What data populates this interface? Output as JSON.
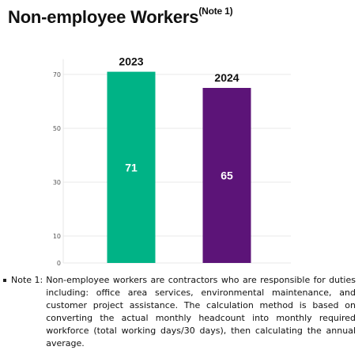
{
  "title": "Non-employee Workers",
  "title_note": "(Note 1)",
  "chart_data": {
    "type": "bar",
    "categories": [
      "2023",
      "2024"
    ],
    "values": [
      71,
      65
    ],
    "colors": [
      "#00b386",
      "#5c1478"
    ],
    "y_ticks": [
      0,
      10,
      30,
      50,
      70
    ],
    "ylim": [
      0,
      78
    ],
    "grid": true,
    "legend": "none"
  },
  "note": {
    "label": "Note 1:",
    "text": "Non-employee workers are contractors who are responsible for duties including: office area services, environmental maintenance, and customer project assistance. The calculation method is based on converting the actual monthly headcount into monthly required workforce (total working days/30 days), then calculating the annual average."
  }
}
